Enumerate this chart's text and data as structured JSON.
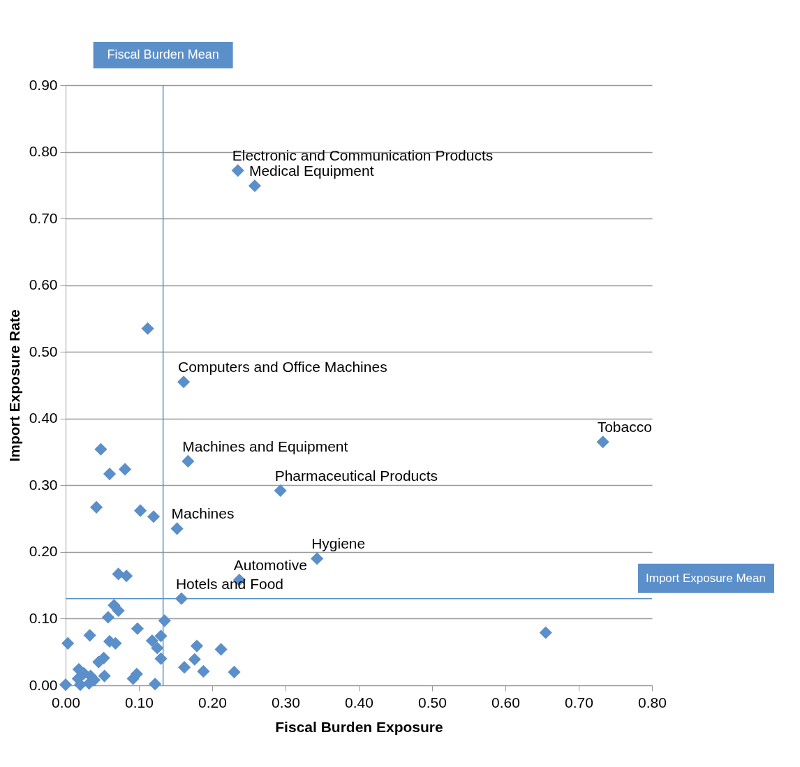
{
  "chart_data": {
    "type": "scatter",
    "xlabel": "Fiscal Burden Exposure",
    "ylabel": "Import Exposure Rate",
    "x": [
      0.235,
      0.258,
      0.112,
      0.161,
      0.733,
      0.048,
      0.167,
      0.06,
      0.081,
      0.293,
      0.042,
      0.102,
      0.12,
      0.152,
      0.343,
      0.237,
      0.072,
      0.083,
      0.158,
      0.655,
      0.066,
      0.072,
      0.058,
      0.135,
      0.098,
      0.033,
      0.003,
      0.06,
      0.068,
      0.13,
      0.118,
      0.125,
      0.13,
      0.179,
      0.212,
      0.176,
      0.162,
      0.188,
      0.23,
      0.052,
      0.045,
      0.053,
      0.097,
      0.092,
      0.122,
      0.0,
      0.018,
      0.025,
      0.034,
      0.017,
      0.02,
      0.032,
      0.039
    ],
    "series": [
      {
        "color": "#5b8fc9",
        "values": [
          0.772,
          0.749,
          0.535,
          0.455,
          0.365,
          0.354,
          0.336,
          0.317,
          0.324,
          0.292,
          0.267,
          0.262,
          0.253,
          0.235,
          0.19,
          0.158,
          0.167,
          0.164,
          0.13,
          0.079,
          0.12,
          0.112,
          0.102,
          0.097,
          0.085,
          0.075,
          0.063,
          0.066,
          0.063,
          0.074,
          0.067,
          0.056,
          0.04,
          0.059,
          0.054,
          0.039,
          0.027,
          0.021,
          0.02,
          0.041,
          0.035,
          0.014,
          0.017,
          0.01,
          0.002,
          0.001,
          0.024,
          0.018,
          0.014,
          0.01,
          0.001,
          0.003,
          0.008
        ]
      }
    ],
    "marker": "diamond",
    "grid": "y",
    "xlim": [
      0,
      0.8
    ],
    "ylim": [
      0,
      0.9
    ],
    "xticks": [
      {
        "value": 0,
        "label": "0.00"
      },
      {
        "value": 0.1,
        "label": "0.10"
      },
      {
        "value": 0.2,
        "label": "0.20"
      },
      {
        "value": 0.3,
        "label": "0.30"
      },
      {
        "value": 0.4,
        "label": "0.40"
      },
      {
        "value": 0.5,
        "label": "0.50"
      },
      {
        "value": 0.6,
        "label": "0.60"
      },
      {
        "value": 0.7,
        "label": "0.70"
      },
      {
        "value": 0.8,
        "label": "0.80"
      }
    ],
    "yticks": [
      {
        "value": 0,
        "label": "0.00"
      },
      {
        "value": 0.1,
        "label": "0.10"
      },
      {
        "value": 0.2,
        "label": "0.20"
      },
      {
        "value": 0.3,
        "label": "0.30"
      },
      {
        "value": 0.4,
        "label": "0.40"
      },
      {
        "value": 0.5,
        "label": "0.50"
      },
      {
        "value": 0.6,
        "label": "0.60"
      },
      {
        "value": 0.7,
        "label": "0.70"
      },
      {
        "value": 0.8,
        "label": "0.80"
      },
      {
        "value": 0.9,
        "label": "0.90"
      }
    ],
    "ref_lines": [
      {
        "axis": "x",
        "value": 0.133,
        "label": "Fiscal Burden Mean",
        "color": "#5b8fc9"
      },
      {
        "axis": "y",
        "value": 0.13,
        "label": "Import Exposure Mean",
        "color": "#5b8fc9"
      }
    ],
    "annotations": [
      {
        "text": "Electronic and Communication Products",
        "x": 0.235,
        "y": 0.772
      },
      {
        "text": "Medical Equipment",
        "x": 0.258,
        "y": 0.749
      },
      {
        "text": "Computers and Office Machines",
        "x": 0.161,
        "y": 0.455
      },
      {
        "text": "Tobacco",
        "x": 0.733,
        "y": 0.365
      },
      {
        "text": "Machines and Equipment",
        "x": 0.167,
        "y": 0.336
      },
      {
        "text": "Pharmaceutical Products",
        "x": 0.293,
        "y": 0.292
      },
      {
        "text": "Machines",
        "x": 0.152,
        "y": 0.235
      },
      {
        "text": "Hygiene",
        "x": 0.343,
        "y": 0.19
      },
      {
        "text": "Automotive",
        "x": 0.237,
        "y": 0.158
      },
      {
        "text": "Hotels and Food",
        "x": 0.158,
        "y": 0.13
      }
    ]
  }
}
